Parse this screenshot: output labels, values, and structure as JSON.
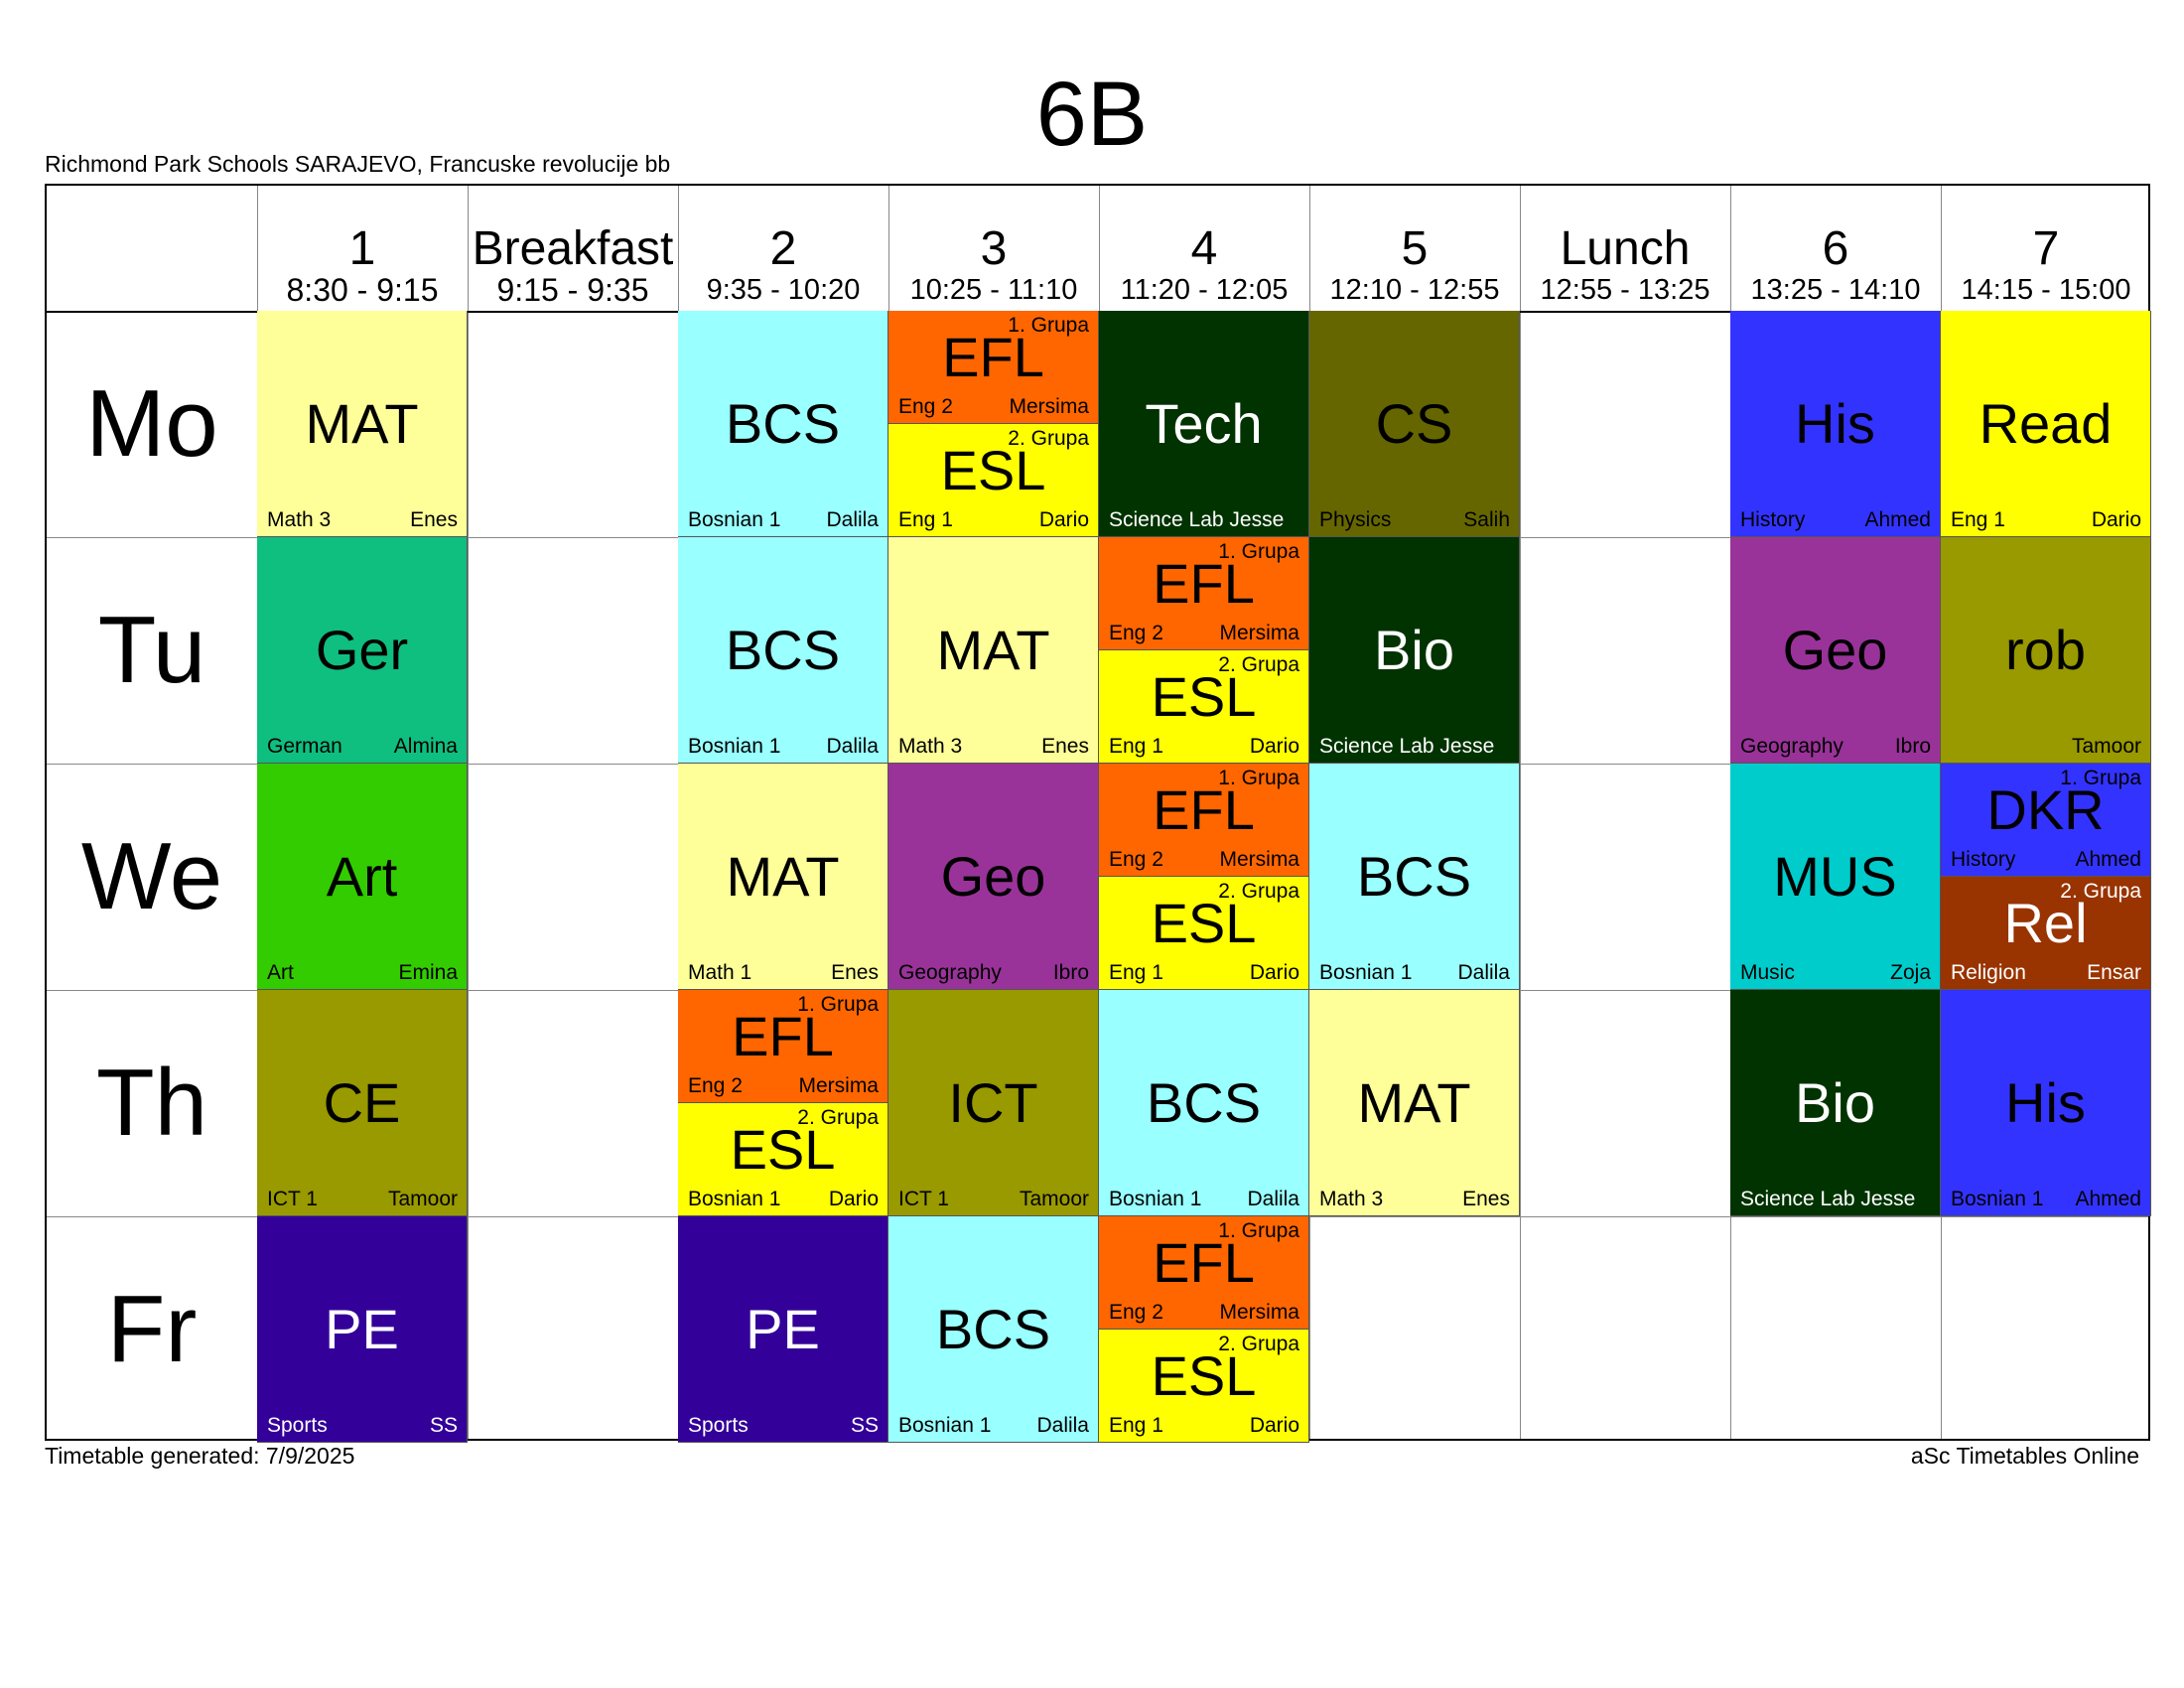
{
  "title": "6B",
  "school": "Richmond Park Schools SARAJEVO, Francuske revolucije bb",
  "footer": {
    "generated": "Timetable generated: 7/9/2025",
    "brand": "aSc Timetables Online"
  },
  "periods": [
    {
      "name": "1",
      "time": "8:30 - 9:15"
    },
    {
      "name": "Breakfast",
      "time": "9:15 - 9:35"
    },
    {
      "name": "2",
      "time": "9:35 - 10:20"
    },
    {
      "name": "3",
      "time": "10:25 - 11:10"
    },
    {
      "name": "4",
      "time": "11:20 - 12:05"
    },
    {
      "name": "5",
      "time": "12:10 - 12:55"
    },
    {
      "name": "Lunch",
      "time": "12:55 - 13:25"
    },
    {
      "name": "6",
      "time": "13:25 - 14:10"
    },
    {
      "name": "7",
      "time": "14:15 - 15:00"
    }
  ],
  "days": [
    "Mo",
    "Tu",
    "We",
    "Th",
    "Fr"
  ],
  "lessons": [
    {
      "day": 0,
      "col": 0,
      "subject": "MAT",
      "room": "Math 3",
      "teacher": "Enes",
      "color": "#FFFF99",
      "light": false
    },
    {
      "day": 0,
      "col": 2,
      "subject": "BCS",
      "room": "Bosnian 1",
      "teacher": "Dalila",
      "color": "#99FFFF",
      "light": false
    },
    {
      "day": 0,
      "col": 3,
      "part": 0,
      "group": "1. Grupa",
      "subject": "EFL",
      "room": "Eng 2",
      "teacher": "Mersima",
      "color": "#FF6600",
      "light": false
    },
    {
      "day": 0,
      "col": 3,
      "part": 1,
      "group": "2. Grupa",
      "subject": "ESL",
      "room": "Eng 1",
      "teacher": "Dario",
      "color": "#FFFF00",
      "light": false
    },
    {
      "day": 0,
      "col": 4,
      "subject": "Tech",
      "room": "Science Lab Jesse",
      "teacher": "",
      "color": "#003300",
      "light": true
    },
    {
      "day": 0,
      "col": 5,
      "subject": "CS",
      "room": "Physics",
      "teacher": "Salih",
      "color": "#666600",
      "light": false
    },
    {
      "day": 0,
      "col": 7,
      "subject": "His",
      "room": "History",
      "teacher": "Ahmed",
      "color": "#3333FF",
      "light": false
    },
    {
      "day": 0,
      "col": 8,
      "subject": "Read",
      "room": "Eng 1",
      "teacher": "Dario",
      "color": "#FFFF00",
      "light": false
    },
    {
      "day": 1,
      "col": 0,
      "subject": "Ger",
      "room": "German",
      "teacher": "Almina",
      "color": "#0FBF80",
      "light": false
    },
    {
      "day": 1,
      "col": 2,
      "subject": "BCS",
      "room": "Bosnian 1",
      "teacher": "Dalila",
      "color": "#99FFFF",
      "light": false
    },
    {
      "day": 1,
      "col": 3,
      "subject": "MAT",
      "room": "Math 3",
      "teacher": "Enes",
      "color": "#FFFF99",
      "light": false
    },
    {
      "day": 1,
      "col": 4,
      "part": 0,
      "group": "1. Grupa",
      "subject": "EFL",
      "room": "Eng 2",
      "teacher": "Mersima",
      "color": "#FF6600",
      "light": false
    },
    {
      "day": 1,
      "col": 4,
      "part": 1,
      "group": "2. Grupa",
      "subject": "ESL",
      "room": "Eng 1",
      "teacher": "Dario",
      "color": "#FFFF00",
      "light": false
    },
    {
      "day": 1,
      "col": 5,
      "subject": "Bio",
      "room": "Science Lab Jesse",
      "teacher": "",
      "color": "#003300",
      "light": true
    },
    {
      "day": 1,
      "col": 7,
      "subject": "Geo",
      "room": "Geography",
      "teacher": "Ibro",
      "color": "#993399",
      "light": false
    },
    {
      "day": 1,
      "col": 8,
      "subject": "rob",
      "room": "",
      "teacher": "Tamoor",
      "color": "#999900",
      "light": false
    },
    {
      "day": 2,
      "col": 0,
      "subject": "Art",
      "room": "Art",
      "teacher": "Emina",
      "color": "#33CC00",
      "light": false
    },
    {
      "day": 2,
      "col": 2,
      "subject": "MAT",
      "room": "Math 1",
      "teacher": "Enes",
      "color": "#FFFF99",
      "light": false
    },
    {
      "day": 2,
      "col": 3,
      "subject": "Geo",
      "room": "Geography",
      "teacher": "Ibro",
      "color": "#993399",
      "light": false
    },
    {
      "day": 2,
      "col": 4,
      "part": 0,
      "group": "1. Grupa",
      "subject": "EFL",
      "room": "Eng 2",
      "teacher": "Mersima",
      "color": "#FF6600",
      "light": false
    },
    {
      "day": 2,
      "col": 4,
      "part": 1,
      "group": "2. Grupa",
      "subject": "ESL",
      "room": "Eng 1",
      "teacher": "Dario",
      "color": "#FFFF00",
      "light": false
    },
    {
      "day": 2,
      "col": 5,
      "subject": "BCS",
      "room": "Bosnian 1",
      "teacher": "Dalila",
      "color": "#99FFFF",
      "light": false
    },
    {
      "day": 2,
      "col": 7,
      "subject": "MUS",
      "room": "Music",
      "teacher": "Zoja",
      "color": "#00CCCC",
      "light": false
    },
    {
      "day": 2,
      "col": 8,
      "part": 0,
      "group": "1. Grupa",
      "subject": "DKR",
      "room": "History",
      "teacher": "Ahmed",
      "color": "#3333FF",
      "light": false
    },
    {
      "day": 2,
      "col": 8,
      "part": 1,
      "group": "2. Grupa",
      "subject": "Rel",
      "room": "Religion",
      "teacher": "Ensar",
      "color": "#993300",
      "light": true
    },
    {
      "day": 3,
      "col": 0,
      "subject": "CE",
      "room": "ICT 1",
      "teacher": "Tamoor",
      "color": "#999900",
      "light": false
    },
    {
      "day": 3,
      "col": 2,
      "part": 0,
      "group": "1. Grupa",
      "subject": "EFL",
      "room": "Eng 2",
      "teacher": "Mersima",
      "color": "#FF6600",
      "light": false
    },
    {
      "day": 3,
      "col": 2,
      "part": 1,
      "group": "2. Grupa",
      "subject": "ESL",
      "room": "Bosnian 1",
      "teacher": "Dario",
      "color": "#FFFF00",
      "light": false
    },
    {
      "day": 3,
      "col": 3,
      "subject": "ICT",
      "room": "ICT 1",
      "teacher": "Tamoor",
      "color": "#999900",
      "light": false
    },
    {
      "day": 3,
      "col": 4,
      "subject": "BCS",
      "room": "Bosnian 1",
      "teacher": "Dalila",
      "color": "#99FFFF",
      "light": false
    },
    {
      "day": 3,
      "col": 5,
      "subject": "MAT",
      "room": "Math 3",
      "teacher": "Enes",
      "color": "#FFFF99",
      "light": false
    },
    {
      "day": 3,
      "col": 7,
      "subject": "Bio",
      "room": "Science Lab Jesse",
      "teacher": "",
      "color": "#003300",
      "light": true
    },
    {
      "day": 3,
      "col": 8,
      "subject": "His",
      "room": "Bosnian 1",
      "teacher": "Ahmed",
      "color": "#3333FF",
      "light": false
    },
    {
      "day": 4,
      "col": 0,
      "subject": "PE",
      "room": "Sports",
      "teacher": "SS",
      "color": "#330099",
      "light": true
    },
    {
      "day": 4,
      "col": 2,
      "subject": "PE",
      "room": "Sports",
      "teacher": "SS",
      "color": "#330099",
      "light": true
    },
    {
      "day": 4,
      "col": 3,
      "subject": "BCS",
      "room": "Bosnian 1",
      "teacher": "Dalila",
      "color": "#99FFFF",
      "light": false
    },
    {
      "day": 4,
      "col": 4,
      "part": 0,
      "group": "1. Grupa",
      "subject": "EFL",
      "room": "Eng 2",
      "teacher": "Mersima",
      "color": "#FF6600",
      "light": false
    },
    {
      "day": 4,
      "col": 4,
      "part": 1,
      "group": "2. Grupa",
      "subject": "ESL",
      "room": "Eng 1",
      "teacher": "Dario",
      "color": "#FFFF00",
      "light": false
    }
  ]
}
